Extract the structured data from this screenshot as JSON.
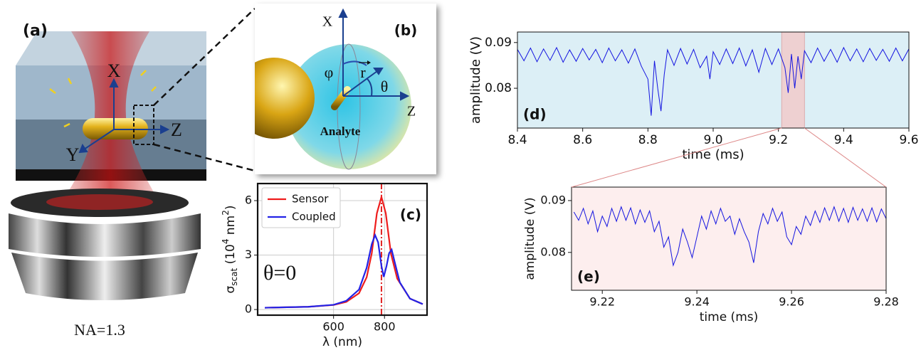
{
  "illustration": {
    "a": {
      "label": "(a)",
      "x": "X",
      "y": "Y",
      "z": "Z",
      "na": "NA=1.3"
    },
    "b": {
      "label": "(b)",
      "x": "X",
      "z": "Z",
      "phi": "φ",
      "theta": "θ",
      "r": "r",
      "analyte": "Analyte"
    }
  },
  "chart_data": [
    {
      "type": "line",
      "label": "(c)",
      "xlabel": "λ (nm)",
      "ylabel_parts": [
        "σ",
        "scat",
        " (10",
        "4",
        " nm",
        "2",
        ")"
      ],
      "annotation": "θ=0",
      "vline": 788,
      "grid": true,
      "legend": "upper left",
      "xlim": [
        302,
        967
      ],
      "xticks": [
        600,
        800
      ],
      "ylim": [
        -0.31,
        6.94
      ],
      "yticks": [
        0,
        3,
        6
      ],
      "series": [
        {
          "name": "Sensor",
          "color": "#ee1c1c",
          "x": [
            330,
            400,
            500,
            600,
            650,
            700,
            730,
            750,
            770,
            788,
            805,
            825,
            850,
            900,
            950
          ],
          "values": [
            0.1,
            0.12,
            0.15,
            0.25,
            0.42,
            0.9,
            1.78,
            3.1,
            5.3,
            6.2,
            5.3,
            3.1,
            1.7,
            0.6,
            0.3
          ]
        },
        {
          "name": "Coupled",
          "color": "#2323e6",
          "x": [
            330,
            400,
            500,
            600,
            650,
            700,
            730,
            750,
            763,
            775,
            788,
            797,
            808,
            818,
            828,
            842,
            860,
            900,
            950
          ],
          "values": [
            0.1,
            0.12,
            0.15,
            0.26,
            0.48,
            1.1,
            2.3,
            3.6,
            4.1,
            3.7,
            2.4,
            1.8,
            2.4,
            3.1,
            3.3,
            2.5,
            1.5,
            0.6,
            0.3
          ]
        }
      ]
    },
    {
      "type": "line",
      "label": "(d)",
      "xlabel": "time (ms)",
      "ylabel": "amplitude (V)",
      "background": "#dceff6",
      "highlight": [
        9.21,
        9.28
      ],
      "highlight_color": "#f3c9c9",
      "xlim": [
        8.4,
        9.6
      ],
      "xticks": [
        8.4,
        8.6,
        8.8,
        {
          "value": 9,
          "label": "9.0"
        },
        9.2,
        9.4,
        9.6
      ],
      "ylim": [
        0.0713,
        0.0923
      ],
      "yticks": [
        0.08,
        0.09
      ],
      "series": [
        {
          "color": "#1414e0",
          "x": [
            8.4,
            8.42,
            8.44,
            8.46,
            8.48,
            8.5,
            8.52,
            8.54,
            8.56,
            8.58,
            8.6,
            8.62,
            8.64,
            8.66,
            8.68,
            8.7,
            8.72,
            8.74,
            8.76,
            8.78,
            8.8,
            8.81,
            8.82,
            8.83,
            8.84,
            8.85,
            8.86,
            8.88,
            8.9,
            8.92,
            8.94,
            8.96,
            8.98,
            8.99,
            9.0,
            9.02,
            9.04,
            9.06,
            9.08,
            9.1,
            9.12,
            9.14,
            9.16,
            9.18,
            9.2,
            9.22,
            9.23,
            9.24,
            9.25,
            9.26,
            9.27,
            9.28,
            9.3,
            9.32,
            9.34,
            9.36,
            9.38,
            9.4,
            9.42,
            9.44,
            9.46,
            9.48,
            9.5,
            9.52,
            9.54,
            9.56,
            9.58,
            9.6
          ],
          "values": [
            0.0885,
            0.086,
            0.0888,
            0.0858,
            0.0886,
            0.0861,
            0.0889,
            0.0857,
            0.0884,
            0.0859,
            0.0887,
            0.0862,
            0.0885,
            0.0856,
            0.0888,
            0.086,
            0.0884,
            0.0855,
            0.0886,
            0.0848,
            0.082,
            0.074,
            0.086,
            0.08,
            0.075,
            0.083,
            0.0884,
            0.085,
            0.0887,
            0.0853,
            0.0885,
            0.0845,
            0.087,
            0.082,
            0.088,
            0.0852,
            0.0886,
            0.0854,
            0.0888,
            0.0849,
            0.0884,
            0.0835,
            0.0887,
            0.0852,
            0.0886,
            0.0845,
            0.079,
            0.0875,
            0.08,
            0.087,
            0.082,
            0.0882,
            0.0856,
            0.0888,
            0.0859,
            0.0885,
            0.0857,
            0.0889,
            0.086,
            0.0886,
            0.0858,
            0.0887,
            0.0861,
            0.0885,
            0.0859,
            0.0888,
            0.086,
            0.0886
          ]
        }
      ]
    },
    {
      "type": "line",
      "label": "(e)",
      "xlabel": "time (ms)",
      "ylabel": "amplitude (V)",
      "background": "#fdeeee",
      "xlim": [
        9.2135,
        9.28
      ],
      "xticks": [
        9.22,
        9.24,
        9.26,
        9.28
      ],
      "ylim": [
        0.0727,
        0.0926
      ],
      "yticks": [
        0.08,
        0.09
      ],
      "series": [
        {
          "color": "#1414e0",
          "x": [
            9.214,
            9.215,
            9.216,
            9.217,
            9.218,
            9.219,
            9.22,
            9.221,
            9.222,
            9.223,
            9.224,
            9.225,
            9.226,
            9.227,
            9.228,
            9.229,
            9.23,
            9.231,
            9.232,
            9.233,
            9.234,
            9.235,
            9.236,
            9.237,
            9.238,
            9.239,
            9.24,
            9.241,
            9.242,
            9.243,
            9.244,
            9.245,
            9.246,
            9.247,
            9.248,
            9.249,
            9.25,
            9.251,
            9.252,
            9.253,
            9.254,
            9.255,
            9.256,
            9.257,
            9.258,
            9.259,
            9.26,
            9.261,
            9.262,
            9.263,
            9.264,
            9.265,
            9.266,
            9.267,
            9.268,
            9.269,
            9.27,
            9.271,
            9.272,
            9.273,
            9.274,
            9.275,
            9.276,
            9.277,
            9.278,
            9.279,
            9.28
          ],
          "values": [
            0.0878,
            0.0862,
            0.0885,
            0.0855,
            0.088,
            0.084,
            0.087,
            0.085,
            0.0885,
            0.086,
            0.0888,
            0.0862,
            0.0886,
            0.0855,
            0.0882,
            0.0858,
            0.088,
            0.084,
            0.086,
            0.081,
            0.083,
            0.0775,
            0.08,
            0.0845,
            0.082,
            0.079,
            0.083,
            0.087,
            0.0845,
            0.088,
            0.0855,
            0.0885,
            0.086,
            0.087,
            0.0835,
            0.0865,
            0.084,
            0.082,
            0.078,
            0.084,
            0.0875,
            0.0855,
            0.0885,
            0.086,
            0.0878,
            0.083,
            0.0815,
            0.085,
            0.0835,
            0.087,
            0.0852,
            0.088,
            0.0858,
            0.0886,
            0.0862,
            0.0888,
            0.086,
            0.0885,
            0.0858,
            0.0887,
            0.0862,
            0.0884,
            0.086,
            0.0886,
            0.0859,
            0.0884,
            0.0865
          ]
        }
      ]
    }
  ]
}
